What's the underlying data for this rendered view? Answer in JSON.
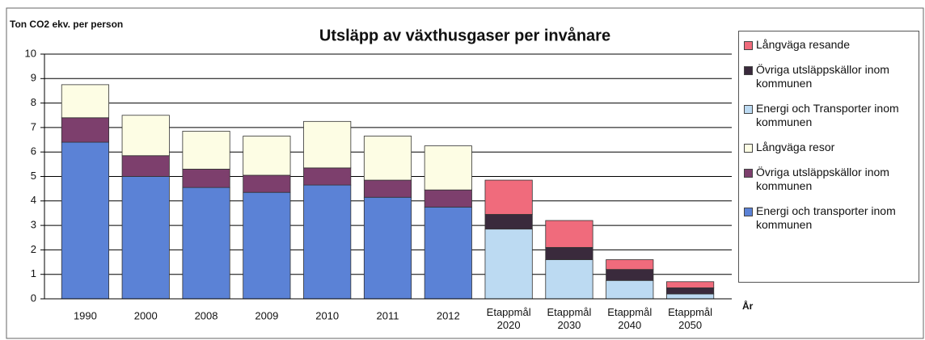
{
  "chart_data": {
    "type": "stacked-bar",
    "title": "Utsläpp av växthusgaser per invånare",
    "y_label": "Ton CO2 ekv. per person",
    "x_label": "År",
    "categories": [
      "1990",
      "2000",
      "2008",
      "2009",
      "2010",
      "2011",
      "2012",
      "Etappmål 2020",
      "Etappmål 2030",
      "Etappmål 2040",
      "Etappmål 2050"
    ],
    "series": [
      {
        "name": "Energi och transporter inom kommunen",
        "color": "#5b82d6",
        "values": [
          6.4,
          5.0,
          4.55,
          4.35,
          4.65,
          4.15,
          3.75,
          null,
          null,
          null,
          null
        ]
      },
      {
        "name": "Övriga utsläppskällor inom kommunen",
        "color": "#7d3f6d",
        "values": [
          1.0,
          0.85,
          0.75,
          0.7,
          0.7,
          0.7,
          0.7,
          null,
          null,
          null,
          null
        ]
      },
      {
        "name": "Långväga resor",
        "color": "#fdfde4",
        "values": [
          1.35,
          1.65,
          1.55,
          1.6,
          1.9,
          1.8,
          1.8,
          null,
          null,
          null,
          null
        ]
      },
      {
        "name": "Energi och Transporter inom kommunen",
        "color": "#bcdaf2",
        "values": [
          null,
          null,
          null,
          null,
          null,
          null,
          null,
          2.85,
          1.6,
          0.75,
          0.2
        ]
      },
      {
        "name": "Övriga utsläppskällor inom kommunen",
        "color": "#3a2a3c",
        "values": [
          null,
          null,
          null,
          null,
          null,
          null,
          null,
          0.6,
          0.5,
          0.45,
          0.25
        ]
      },
      {
        "name": "Långväga resande",
        "color": "#f06b7c",
        "values": [
          null,
          null,
          null,
          null,
          null,
          null,
          null,
          1.4,
          1.1,
          0.4,
          0.25
        ]
      }
    ],
    "ylim": [
      0,
      10
    ],
    "yticks": [
      0,
      1,
      2,
      3,
      4,
      5,
      6,
      7,
      8,
      9,
      10
    ],
    "grid": true
  }
}
